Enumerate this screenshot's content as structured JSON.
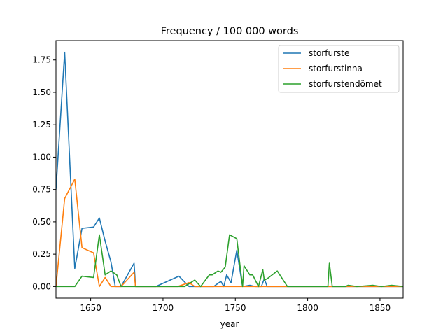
{
  "chart_data": {
    "type": "line",
    "title": "Frequency / 100 000 words",
    "xlabel": "year",
    "ylabel": "",
    "xlim": [
      1626,
      1866
    ],
    "ylim": [
      -0.09,
      1.9
    ],
    "xticks": [
      1650,
      1700,
      1750,
      1800,
      1850
    ],
    "yticks": [
      0.0,
      0.25,
      0.5,
      0.75,
      1.0,
      1.25,
      1.5,
      1.75
    ],
    "ytick_labels": [
      "0.00",
      "0.25",
      "0.50",
      "0.75",
      "1.00",
      "1.25",
      "1.50",
      "1.75"
    ],
    "legend_position": "top-right",
    "series": [
      {
        "name": "storfurste",
        "color": "#1f77b4",
        "points": [
          [
            1626,
            0.75
          ],
          [
            1632,
            1.81
          ],
          [
            1639,
            0.14
          ],
          [
            1644,
            0.45
          ],
          [
            1652,
            0.46
          ],
          [
            1656,
            0.53
          ],
          [
            1660,
            0.35
          ],
          [
            1664,
            0.19
          ],
          [
            1667,
            0.0
          ],
          [
            1671,
            0.0
          ],
          [
            1680,
            0.18
          ],
          [
            1681,
            0.0
          ],
          [
            1695,
            0.0
          ],
          [
            1711,
            0.08
          ],
          [
            1718,
            0.0
          ],
          [
            1725,
            0.0
          ],
          [
            1735,
            0.0
          ],
          [
            1740,
            0.04
          ],
          [
            1742,
            0.0
          ],
          [
            1744,
            0.09
          ],
          [
            1747,
            0.03
          ],
          [
            1751,
            0.28
          ],
          [
            1755,
            0.0
          ],
          [
            1760,
            0.01
          ],
          [
            1764,
            0.0
          ],
          [
            1768,
            0.0
          ],
          [
            1770,
            0.06
          ],
          [
            1772,
            0.0
          ],
          [
            1866,
            0.0
          ]
        ]
      },
      {
        "name": "storfurstinna",
        "color": "#ff7f0e",
        "points": [
          [
            1626,
            0.0
          ],
          [
            1632,
            0.68
          ],
          [
            1639,
            0.83
          ],
          [
            1644,
            0.3
          ],
          [
            1652,
            0.26
          ],
          [
            1656,
            0.0
          ],
          [
            1660,
            0.07
          ],
          [
            1664,
            0.0
          ],
          [
            1671,
            0.0
          ],
          [
            1680,
            0.11
          ],
          [
            1681,
            0.0
          ],
          [
            1710,
            0.0
          ],
          [
            1718,
            0.03
          ],
          [
            1722,
            0.0
          ],
          [
            1866,
            0.0
          ]
        ]
      },
      {
        "name": "storfurstendömet",
        "color": "#2ca02c",
        "points": [
          [
            1626,
            0.0
          ],
          [
            1639,
            0.0
          ],
          [
            1644,
            0.08
          ],
          [
            1652,
            0.07
          ],
          [
            1656,
            0.4
          ],
          [
            1660,
            0.09
          ],
          [
            1664,
            0.12
          ],
          [
            1668,
            0.09
          ],
          [
            1671,
            0.0
          ],
          [
            1680,
            0.0
          ],
          [
            1715,
            0.0
          ],
          [
            1722,
            0.05
          ],
          [
            1726,
            0.0
          ],
          [
            1732,
            0.09
          ],
          [
            1734,
            0.09
          ],
          [
            1738,
            0.12
          ],
          [
            1740,
            0.11
          ],
          [
            1743,
            0.15
          ],
          [
            1746,
            0.4
          ],
          [
            1751,
            0.37
          ],
          [
            1755,
            0.0
          ],
          [
            1756,
            0.16
          ],
          [
            1760,
            0.09
          ],
          [
            1762,
            0.09
          ],
          [
            1766,
            0.0
          ],
          [
            1769,
            0.13
          ],
          [
            1770,
            0.05
          ],
          [
            1772,
            0.06
          ],
          [
            1779,
            0.12
          ],
          [
            1786,
            0.0
          ],
          [
            1810,
            0.0
          ],
          [
            1814,
            0.0
          ],
          [
            1815,
            0.18
          ],
          [
            1817,
            0.0
          ],
          [
            1826,
            0.0
          ],
          [
            1828,
            0.01
          ],
          [
            1834,
            0.0
          ],
          [
            1845,
            0.01
          ],
          [
            1851,
            0.0
          ],
          [
            1858,
            0.01
          ],
          [
            1866,
            0.0
          ]
        ]
      }
    ]
  }
}
